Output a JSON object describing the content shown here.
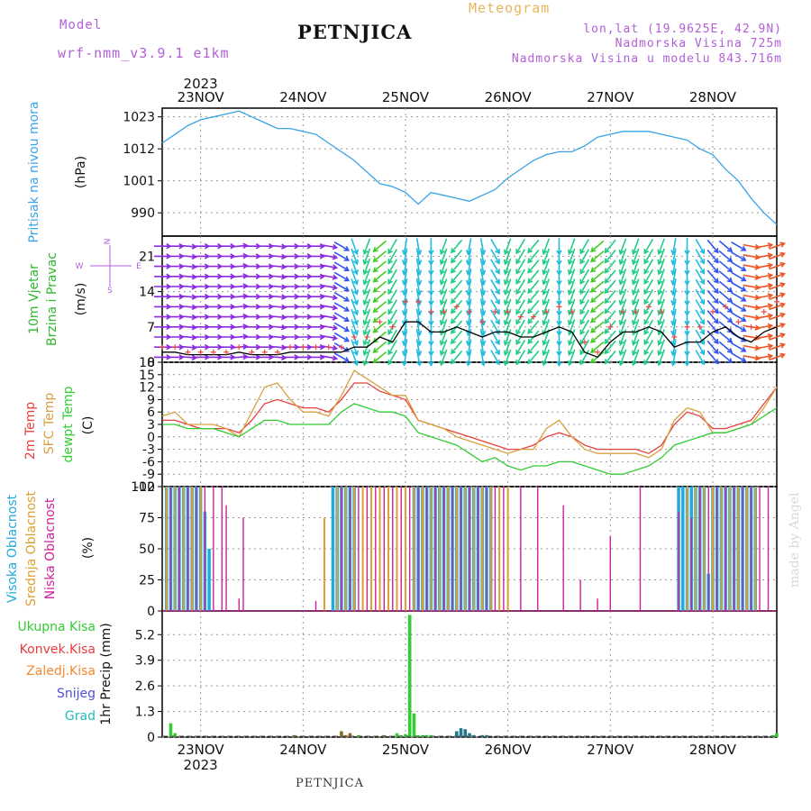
{
  "header": {
    "model_label": "Model",
    "model_name": "wrf-nmm_v3.9.1  e1km",
    "station": "PETNJICA",
    "product": "Meteogram",
    "coords": "lon,lat (19.9625E, 42.9N)",
    "elevation": "Nadmorska Visina 725m",
    "model_elevation": "Nadmorska Visina u modelu 843.716m"
  },
  "footer": {
    "station": "PETNJICA"
  },
  "watermark": "made by Angel",
  "time_axis": {
    "year": "2023",
    "days": [
      "23NOV",
      "24NOV",
      "25NOV",
      "26NOV",
      "27NOV",
      "28NOV"
    ],
    "start_hour": -9,
    "end_hour": 135
  },
  "colors": {
    "pressure": "#3aa3e8",
    "wind_label": "#2fb82f",
    "temp2m": "#e84040",
    "sfc": "#d8a040",
    "dewpt": "#33cc33",
    "cloud_high": "#22aadd",
    "cloud_mid": "#dda030",
    "cloud_low": "#cc2299",
    "precip_total": "#33cc33",
    "precip_conv": "#e83c3c",
    "precip_froz": "#f08a30",
    "snow": "#5050dd",
    "hail": "#22bbbb"
  },
  "chart_data": [
    {
      "type": "line",
      "name": "pressure",
      "ylabel": "Pritisak na nivou mora",
      "unit": "(hPa)",
      "yticks": [
        990,
        1001,
        1012,
        1023
      ],
      "ylim": [
        982,
        1026
      ],
      "x": [
        -9,
        -6,
        -3,
        0,
        3,
        6,
        9,
        12,
        15,
        18,
        21,
        24,
        27,
        30,
        33,
        36,
        39,
        42,
        45,
        48,
        51,
        54,
        57,
        60,
        63,
        66,
        69,
        72,
        75,
        78,
        81,
        84,
        87,
        90,
        93,
        96,
        99,
        102,
        105,
        108,
        111,
        114,
        117,
        120,
        123,
        126,
        129,
        132,
        135
      ],
      "values": [
        1014,
        1017,
        1020,
        1022,
        1023,
        1024,
        1025,
        1023,
        1021,
        1019,
        1019,
        1018,
        1017,
        1014,
        1011,
        1008,
        1004,
        1000,
        999,
        997,
        993,
        997,
        996,
        995,
        994,
        996,
        998,
        1002,
        1005,
        1008,
        1010,
        1011,
        1011,
        1013,
        1016,
        1017,
        1018,
        1018,
        1018,
        1017,
        1016,
        1015,
        1012,
        1010,
        1005,
        1001,
        995,
        990,
        986
      ]
    },
    {
      "type": "line",
      "name": "wind",
      "ylabel_line1": "10m Vjetar",
      "ylabel_line2": "Brzina i Pravac",
      "unit": "(m/s)",
      "compass": [
        "N",
        "W",
        "E",
        "S"
      ],
      "yticks": [
        0,
        7,
        14,
        21
      ],
      "ylim": [
        0,
        25
      ],
      "x": [
        -9,
        -6,
        -3,
        0,
        3,
        6,
        9,
        12,
        15,
        18,
        21,
        24,
        27,
        30,
        33,
        36,
        39,
        42,
        45,
        48,
        51,
        54,
        57,
        60,
        63,
        66,
        69,
        72,
        75,
        78,
        81,
        84,
        87,
        90,
        93,
        96,
        99,
        102,
        105,
        108,
        111,
        114,
        117,
        120,
        123,
        126,
        129,
        132,
        135
      ],
      "speed": [
        2,
        2,
        1.5,
        1.5,
        1.5,
        1.5,
        2,
        1.5,
        1.5,
        1.5,
        2,
        2,
        2,
        2,
        2,
        3,
        3,
        5,
        4,
        8,
        8,
        6,
        6,
        7,
        6,
        5,
        6,
        6,
        5,
        5,
        6,
        7,
        6,
        2,
        1,
        4,
        6,
        6,
        7,
        6,
        3,
        4,
        4,
        6,
        7,
        5,
        4,
        6,
        7
      ],
      "gust": [
        3,
        3,
        2,
        2,
        2,
        2,
        3,
        2,
        2,
        2,
        3,
        3,
        3,
        3,
        3,
        5,
        5,
        8,
        7,
        12,
        12,
        10,
        10,
        11,
        10,
        8,
        10,
        10,
        9,
        9,
        10,
        11,
        10,
        4,
        2,
        7,
        10,
        10,
        11,
        10,
        5,
        7,
        7,
        10,
        11,
        8,
        7,
        10,
        12
      ],
      "direction_deg": [
        90,
        90,
        95,
        90,
        90,
        90,
        85,
        90,
        90,
        95,
        90,
        90,
        90,
        100,
        120,
        160,
        200,
        230,
        210,
        190,
        170,
        180,
        200,
        220,
        190,
        170,
        150,
        200,
        210,
        220,
        200,
        180,
        200,
        210,
        230,
        220,
        200,
        200,
        210,
        200,
        190,
        180,
        150,
        140,
        130,
        120,
        100,
        80,
        70
      ]
    },
    {
      "type": "line",
      "name": "temperature",
      "ylabel_2m": "2m Temp",
      "ylabel_sfc": "SFC Temp",
      "ylabel_dew": "dewpt Temp",
      "unit": "(C)",
      "yticks": [
        -12,
        -9,
        -6,
        -3,
        0,
        3,
        6,
        9,
        12,
        15,
        18
      ],
      "ylim": [
        -12,
        18
      ],
      "x": [
        -9,
        -6,
        -3,
        0,
        3,
        6,
        9,
        12,
        15,
        18,
        21,
        24,
        27,
        30,
        33,
        36,
        39,
        42,
        45,
        48,
        51,
        54,
        57,
        60,
        63,
        66,
        69,
        72,
        75,
        78,
        81,
        84,
        87,
        90,
        93,
        96,
        99,
        102,
        105,
        108,
        111,
        114,
        117,
        120,
        123,
        126,
        129,
        132,
        135
      ],
      "series": [
        {
          "name": "2m Temp",
          "values": [
            4,
            4,
            3,
            2,
            2,
            2,
            1,
            4,
            8,
            9,
            8,
            7,
            7,
            6,
            9,
            13,
            13,
            11,
            10,
            9,
            4,
            3,
            2,
            1,
            0,
            -1,
            -2,
            -3,
            -3,
            -2,
            0,
            1,
            0,
            -2,
            -3,
            -3,
            -3,
            -3,
            -4,
            -2,
            3,
            6,
            5,
            2,
            2,
            3,
            4,
            8,
            12
          ]
        },
        {
          "name": "SFC Temp",
          "values": [
            5,
            6,
            3,
            3,
            3,
            2,
            0,
            6,
            12,
            13,
            9,
            6,
            6,
            5,
            10,
            16,
            14,
            12,
            10,
            10,
            4,
            3,
            2,
            0,
            -1,
            -2,
            -3,
            -4,
            -3,
            -3,
            2,
            4,
            0,
            -3,
            -4,
            -4,
            -4,
            -4,
            -5,
            -3,
            4,
            7,
            6,
            1,
            1,
            2,
            3,
            7,
            12
          ]
        },
        {
          "name": "dewpt Temp",
          "values": [
            3,
            3,
            2,
            2,
            2,
            1,
            0,
            2,
            4,
            4,
            3,
            3,
            3,
            3,
            6,
            8,
            7,
            6,
            6,
            5,
            1,
            0,
            -1,
            -2,
            -4,
            -6,
            -5,
            -7,
            -8,
            -7,
            -7,
            -6,
            -6,
            -7,
            -8,
            -9,
            -9,
            -8,
            -7,
            -5,
            -2,
            -1,
            0,
            1,
            1,
            2,
            3,
            5,
            7
          ]
        }
      ]
    },
    {
      "type": "bar",
      "name": "cloud",
      "ylabel_high": "Visoka Oblacnost",
      "ylabel_mid": "Srednja Oblacnost",
      "ylabel_low": "Niska Oblacnost",
      "unit": "(%)",
      "yticks": [
        0,
        25,
        50,
        75,
        100
      ],
      "ylim": [
        0,
        100
      ],
      "series": [
        {
          "name": "Visoka Oblacnost",
          "x": [
            -8,
            -7,
            -6,
            -5,
            -4,
            -3,
            -2,
            -1,
            0,
            1,
            2,
            31,
            32,
            33,
            34,
            35,
            36,
            50,
            51,
            52,
            53,
            54,
            55,
            56,
            57,
            58,
            59,
            60,
            61,
            62,
            63,
            64,
            65,
            66,
            67,
            68,
            112,
            113,
            114,
            115,
            116,
            117,
            118,
            119,
            120,
            121,
            122,
            123,
            124,
            125,
            126,
            127,
            128,
            129,
            130
          ],
          "values": [
            100,
            100,
            100,
            100,
            100,
            100,
            100,
            100,
            100,
            80,
            50,
            100,
            100,
            100,
            100,
            100,
            100,
            100,
            100,
            100,
            100,
            100,
            100,
            100,
            100,
            100,
            100,
            100,
            100,
            100,
            100,
            100,
            100,
            100,
            100,
            100,
            100,
            100,
            100,
            100,
            100,
            100,
            100,
            30,
            100,
            100,
            100,
            100,
            100,
            100,
            100,
            100,
            100,
            100,
            100
          ]
        },
        {
          "name": "Srednja Oblacnost",
          "x": [
            -8,
            -6,
            -4,
            -2,
            0,
            29,
            32,
            34,
            36,
            38,
            40,
            42,
            44,
            46,
            48,
            50,
            52,
            54,
            56,
            58,
            60,
            62,
            64,
            66,
            68,
            70,
            72,
            114,
            116,
            118,
            120,
            122,
            124,
            126,
            128,
            130
          ],
          "values": [
            100,
            100,
            100,
            100,
            100,
            75,
            100,
            100,
            100,
            100,
            100,
            100,
            100,
            100,
            100,
            100,
            100,
            100,
            100,
            100,
            100,
            100,
            100,
            100,
            100,
            100,
            100,
            100,
            100,
            100,
            100,
            100,
            100,
            100,
            100,
            100
          ]
        },
        {
          "name": "Niska Oblacnost",
          "x": [
            -7,
            -5,
            -3,
            -1,
            1,
            3,
            5,
            6,
            9,
            10,
            12,
            27,
            33,
            35,
            37,
            39,
            41,
            43,
            45,
            47,
            49,
            51,
            53,
            55,
            57,
            59,
            61,
            63,
            65,
            67,
            69,
            71,
            75,
            79,
            85,
            89,
            93,
            96,
            103,
            112,
            115,
            117,
            119,
            121,
            123,
            125,
            127,
            129,
            131,
            133
          ],
          "values": [
            100,
            100,
            100,
            100,
            100,
            100,
            100,
            85,
            10,
            75,
            5,
            8,
            100,
            100,
            100,
            100,
            100,
            100,
            100,
            100,
            100,
            100,
            100,
            100,
            100,
            100,
            100,
            100,
            100,
            100,
            100,
            100,
            100,
            100,
            85,
            25,
            10,
            60,
            100,
            80,
            75,
            100,
            100,
            100,
            100,
            100,
            100,
            100,
            100,
            100
          ]
        }
      ]
    },
    {
      "type": "bar",
      "name": "precip",
      "unit": "1hr Precip (mm)",
      "legend": [
        "Ukupna Kisa",
        "Konvek.Kisa",
        "Zaledj.Kisa",
        "Snijeg",
        "Grad"
      ],
      "yticks": [
        0,
        1.3,
        2.6,
        3.9,
        5.2
      ],
      "ylim": [
        0,
        6.4
      ],
      "series": [
        {
          "name": "Ukupna Kisa",
          "x": [
            -7,
            -6,
            37,
            46,
            47,
            48,
            49,
            50,
            51,
            52,
            53,
            54,
            134,
            135
          ],
          "values": [
            0.7,
            0.2,
            0.1,
            0.2,
            0.1,
            0.15,
            6.2,
            1.2,
            0.1,
            0.1,
            0.1,
            0.1,
            0.1,
            0.2
          ]
        },
        {
          "name": "Zaledj.Kisa",
          "x": [
            22,
            33,
            34,
            35,
            43
          ],
          "values": [
            0.1,
            0.3,
            0.1,
            0.2,
            0.1
          ]
        },
        {
          "name": "Grad",
          "x": [
            60,
            61,
            62,
            63,
            64,
            66,
            67
          ],
          "values": [
            0.3,
            0.45,
            0.4,
            0.2,
            0.1,
            0.1,
            0.1
          ]
        }
      ]
    }
  ]
}
